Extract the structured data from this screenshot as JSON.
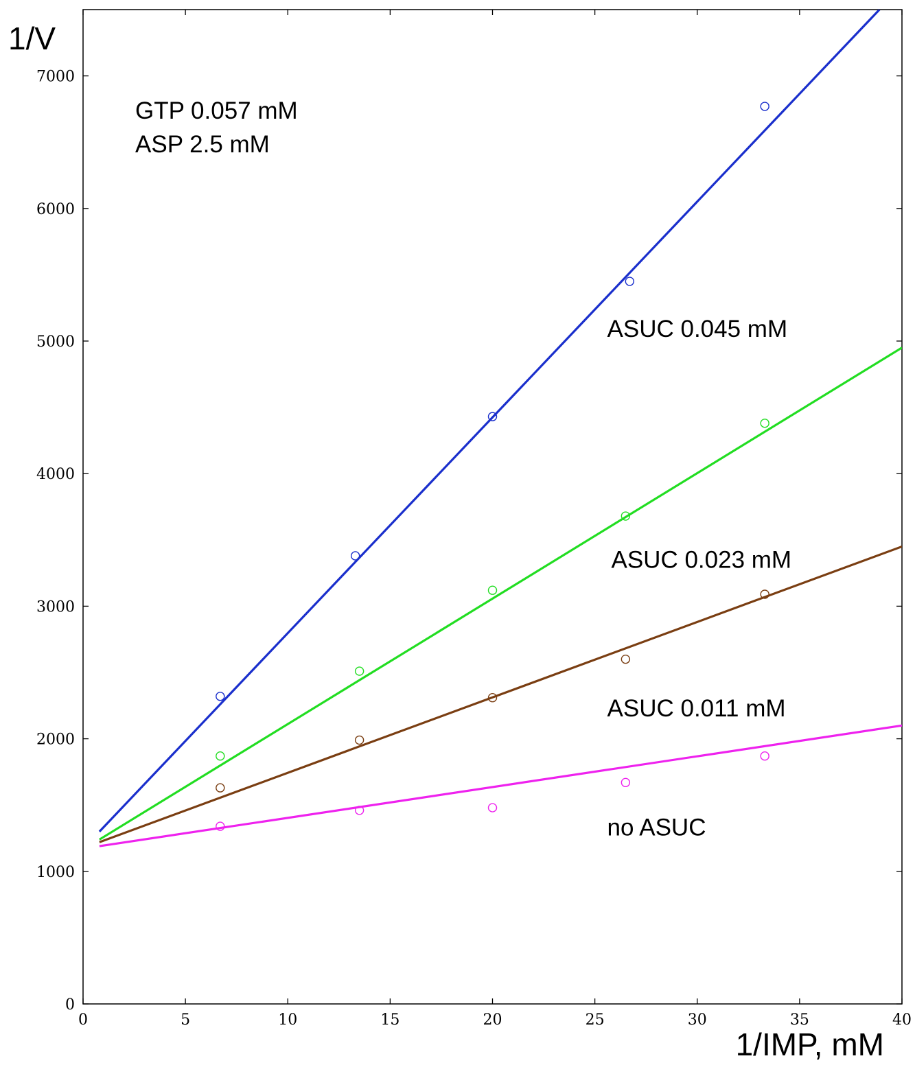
{
  "chart_data": {
    "type": "scatter",
    "title": "",
    "xlabel": "1/IMP, mM",
    "ylabel": "1/V",
    "xlim": [
      0,
      40
    ],
    "ylim": [
      0,
      7500
    ],
    "x_ticks": [
      0,
      5,
      10,
      15,
      20,
      25,
      30,
      35,
      40
    ],
    "y_ticks": [
      0,
      1000,
      2000,
      3000,
      4000,
      5000,
      6000,
      7000
    ],
    "grid": false,
    "conditions": [
      "GTP 0.057 mM",
      "ASP 2.5 mM"
    ],
    "series": [
      {
        "name": "ASUC 0.045 mM",
        "color": "#1a2fcc",
        "points": [
          [
            6.7,
            2320
          ],
          [
            13.3,
            3380
          ],
          [
            20.0,
            4430
          ],
          [
            26.7,
            5450
          ],
          [
            33.3,
            6770
          ]
        ],
        "fit_line": [
          [
            0.8,
            1300
          ],
          [
            38.9,
            7500
          ]
        ]
      },
      {
        "name": "ASUC 0.023 mM",
        "color": "#22dd22",
        "points": [
          [
            6.7,
            1870
          ],
          [
            13.5,
            2510
          ],
          [
            20.0,
            3120
          ],
          [
            26.5,
            3680
          ],
          [
            33.3,
            4380
          ]
        ],
        "fit_line": [
          [
            0.8,
            1240
          ],
          [
            40.0,
            4950
          ]
        ]
      },
      {
        "name": "ASUC 0.011 mM",
        "color": "#7a3e12",
        "points": [
          [
            6.7,
            1630
          ],
          [
            13.5,
            1990
          ],
          [
            20.0,
            2310
          ],
          [
            26.5,
            2600
          ],
          [
            33.3,
            3090
          ]
        ],
        "fit_line": [
          [
            0.8,
            1220
          ],
          [
            40.0,
            3450
          ]
        ]
      },
      {
        "name": "no ASUC",
        "color": "#ee22ee",
        "points": [
          [
            6.7,
            1340
          ],
          [
            13.5,
            1460
          ],
          [
            20.0,
            1480
          ],
          [
            26.5,
            1670
          ],
          [
            33.3,
            1870
          ]
        ],
        "fit_line": [
          [
            0.8,
            1190
          ],
          [
            40.0,
            2100
          ]
        ]
      }
    ],
    "annotations": [
      {
        "text": "ASUC 0.045 mM",
        "x": 25.6,
        "y": 5030
      },
      {
        "text": "ASUC 0.023 mM",
        "x": 25.8,
        "y": 3290
      },
      {
        "text": "ASUC 0.011 mM",
        "x": 25.6,
        "y": 2170
      },
      {
        "text": "no ASUC",
        "x": 25.6,
        "y": 1270
      }
    ]
  }
}
